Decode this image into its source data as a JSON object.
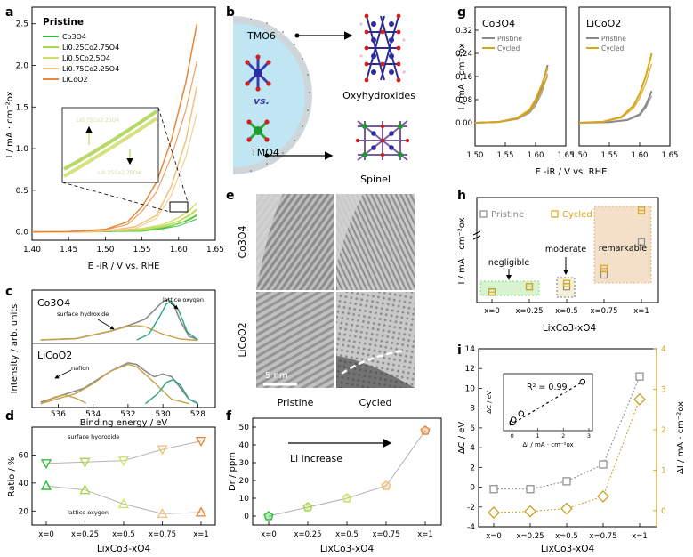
{
  "panel_letters": [
    "a",
    "b",
    "c",
    "d",
    "e",
    "f",
    "g",
    "h",
    "i"
  ],
  "colors": {
    "co3o4": "#2ec03a",
    "li025": "#a9d74a",
    "li05": "#cfe06b",
    "li075": "#f1c27a",
    "licoo2": "#e8873a",
    "pristine": "#8a8a8a",
    "cycled": "#d8a418",
    "teal": "#2aa58a",
    "gold": "#c8a24a",
    "dc_gray": "#8a8a8a",
    "dl_gold": "#c8a020"
  },
  "panel_a": {
    "legend_title": "Pristine",
    "legend": [
      "Co3O4",
      "Li0.25Co2.75O4",
      "Li0.5Co2.5O4",
      "Li0.75Co2.25O4",
      "LiCoO2"
    ],
    "inset_labels": [
      "Li0.75Co2.25O4",
      "Li0.25Co2.75O4"
    ],
    "ylabel": "I / mA · cm⁻²ox",
    "xlabel": "E -iR / V vs. RHE"
  },
  "panel_b": {
    "tmo6": "TMO6",
    "vs": "vs.",
    "tmo4": "TMO4",
    "oxy": "Oxyhydroxides",
    "spinel": "Spinel"
  },
  "panel_c": {
    "label1": "Co3O4",
    "label2": "LiCoO2",
    "surface_hydroxide": "surface hydroxide",
    "lattice_oxygen": "lattice oxygen",
    "nafion": "nafion",
    "ylabel": "Intensity / arb. units",
    "xlabel": "Binding energy / eV",
    "xticks": [
      "536",
      "534",
      "532",
      "530",
      "528"
    ]
  },
  "panel_e": {
    "row1": "Co3O4",
    "row2": "LiCoO2",
    "scale": "5 nm",
    "col1": "Pristine",
    "col2": "Cycled"
  },
  "panel_g": {
    "title1": "Co3O4",
    "title2": "LiCoO2",
    "legend": [
      "Pristine",
      "Cycled"
    ],
    "ylabel": "I / mA · cm⁻²ox",
    "xlabel": "E -iR / V vs. RHE"
  },
  "panel_h": {
    "legend": [
      "Pristine",
      "Cycled"
    ],
    "negligible": "negligible",
    "moderate": "moderate",
    "remarkable": "remarkable",
    "ylabel": "I / mA · cm⁻²ox",
    "xlabel": "LixCo3-xO4"
  },
  "panel_i": {
    "inset_r2": "R² = 0.99",
    "inset_ylabel": "ΔC / eV",
    "inset_xlabel": "ΔI / mA · cm⁻²ox",
    "ylabel_left": "ΔC / eV",
    "ylabel_right": "ΔI / mA · cm⁻²ox",
    "xlabel": "LixCo3-xO4"
  },
  "chart_data": [
    {
      "id": "a",
      "type": "line",
      "xlim": [
        1.4,
        1.65
      ],
      "ylim": [
        -0.1,
        2.7
      ],
      "xticks": [
        1.4,
        1.45,
        1.5,
        1.55,
        1.6,
        1.65
      ],
      "yticks": [
        0.0,
        0.5,
        1.0,
        1.5,
        2.0,
        2.5
      ],
      "series": [
        {
          "name": "Co3O4",
          "x": [
            1.4,
            1.45,
            1.5,
            1.55,
            1.58,
            1.6,
            1.615,
            1.625
          ],
          "y": [
            0,
            0,
            0.005,
            0.02,
            0.05,
            0.1,
            0.15,
            0.2
          ]
        },
        {
          "name": "Li0.25Co2.75O4",
          "x": [
            1.4,
            1.45,
            1.5,
            1.55,
            1.58,
            1.6,
            1.615,
            1.625
          ],
          "y": [
            0,
            0,
            0.01,
            0.03,
            0.07,
            0.13,
            0.2,
            0.27
          ]
        },
        {
          "name": "Li0.5Co2.5O4",
          "x": [
            1.4,
            1.45,
            1.5,
            1.55,
            1.58,
            1.6,
            1.615,
            1.625
          ],
          "y": [
            0,
            0,
            0.01,
            0.04,
            0.09,
            0.17,
            0.26,
            0.35
          ]
        },
        {
          "name": "Li0.75Co2.25O4",
          "x": [
            1.4,
            1.45,
            1.5,
            1.54,
            1.57,
            1.59,
            1.61,
            1.625
          ],
          "y": [
            0,
            0,
            0.01,
            0.06,
            0.2,
            0.55,
            1.1,
            1.75
          ]
        },
        {
          "name": "LiCoO2",
          "x": [
            1.4,
            1.45,
            1.5,
            1.53,
            1.55,
            1.57,
            1.59,
            1.61,
            1.625
          ],
          "y": [
            0,
            0.005,
            0.03,
            0.12,
            0.3,
            0.6,
            1.1,
            1.8,
            2.5
          ]
        }
      ]
    },
    {
      "id": "c",
      "type": "line",
      "xlim": [
        537.5,
        527
      ],
      "subplots": [
        {
          "name": "Co3O4",
          "series": [
            {
              "name": "envelope",
              "x": [
                537,
                535,
                533,
                532,
                531.5,
                531,
                530.5,
                530,
                529.7,
                529.4,
                529,
                528.5,
                528
              ],
              "y": [
                0.02,
                0.05,
                0.22,
                0.35,
                0.42,
                0.5,
                0.7,
                0.9,
                0.95,
                0.85,
                0.45,
                0.1,
                0.03
              ]
            },
            {
              "name": "surface hydroxide",
              "x": [
                537,
                535,
                533,
                532,
                531.5,
                531,
                530,
                529,
                528
              ],
              "y": [
                0.02,
                0.05,
                0.22,
                0.33,
                0.35,
                0.32,
                0.15,
                0.04,
                0.01
              ]
            },
            {
              "name": "lattice oxygen",
              "x": [
                531.5,
                530.8,
                530.2,
                529.8,
                529.5,
                529.1,
                528.6,
                528
              ],
              "y": [
                0.02,
                0.15,
                0.55,
                0.85,
                0.9,
                0.7,
                0.2,
                0.02
              ]
            }
          ]
        },
        {
          "name": "LiCoO2",
          "series": [
            {
              "name": "envelope",
              "x": [
                537,
                536,
                535.5,
                534.5,
                533,
                532,
                531.5,
                531,
                530.5,
                530,
                529.5,
                529,
                528.5,
                528
              ],
              "y": [
                0.05,
                0.15,
                0.2,
                0.3,
                0.6,
                0.75,
                0.72,
                0.6,
                0.5,
                0.55,
                0.5,
                0.3,
                0.1,
                0.03
              ]
            },
            {
              "name": "surface hydroxide",
              "x": [
                537,
                535,
                534,
                533,
                532,
                531.5,
                530.5,
                529.5,
                528.5
              ],
              "y": [
                0.02,
                0.2,
                0.38,
                0.6,
                0.72,
                0.68,
                0.4,
                0.1,
                0.02
              ]
            },
            {
              "name": "lattice oxygen",
              "x": [
                531,
                530.3,
                529.8,
                529.4,
                529,
                528.5,
                528
              ],
              "y": [
                0.02,
                0.2,
                0.4,
                0.45,
                0.35,
                0.1,
                0.02
              ]
            },
            {
              "name": "nafion",
              "x": [
                537,
                536.2,
                535.6,
                535,
                534.4
              ],
              "y": [
                0.02,
                0.14,
                0.18,
                0.12,
                0.03
              ]
            }
          ]
        }
      ]
    },
    {
      "id": "d",
      "type": "line",
      "categories": [
        "x=0",
        "x=0.25",
        "x=0.5",
        "x=0.75",
        "x=1"
      ],
      "ylim": [
        10,
        80
      ],
      "yticks": [
        20,
        40,
        60
      ],
      "ylabel": "Ratio / %",
      "xlabel": "LixCo3-xO4",
      "series": [
        {
          "name": "surface hydroxide",
          "values": [
            54,
            55,
            56,
            64,
            70
          ]
        },
        {
          "name": "lattice oxygen",
          "values": [
            38,
            35,
            25,
            18,
            19
          ]
        }
      ]
    },
    {
      "id": "f",
      "type": "line",
      "categories": [
        "x=0",
        "x=0.25",
        "x=0.5",
        "x=0.75",
        "x=1"
      ],
      "ylim": [
        -5,
        55
      ],
      "yticks": [
        0,
        10,
        20,
        30,
        40,
        50
      ],
      "ylabel": "Dr / ppm",
      "xlabel": "LixCo3-xO4",
      "annotation": "Li increase",
      "values": [
        0,
        5,
        10,
        17,
        48
      ]
    },
    {
      "id": "g",
      "type": "line",
      "xlim": [
        1.5,
        1.65
      ],
      "ylim": [
        -0.08,
        0.4
      ],
      "xticks": [
        1.5,
        1.55,
        1.6,
        1.65
      ],
      "yticks": [
        0.0,
        0.08,
        0.16,
        0.24,
        0.32
      ],
      "subplots": [
        {
          "name": "Co3O4",
          "series": [
            {
              "name": "Pristine",
              "x": [
                1.5,
                1.54,
                1.57,
                1.59,
                1.6,
                1.61,
                1.62
              ],
              "y": [
                0,
                0.003,
                0.015,
                0.04,
                0.07,
                0.12,
                0.2
              ]
            },
            {
              "name": "Cycled",
              "x": [
                1.5,
                1.54,
                1.57,
                1.59,
                1.6,
                1.61,
                1.62
              ],
              "y": [
                0,
                0.003,
                0.017,
                0.045,
                0.08,
                0.13,
                0.19
              ]
            }
          ]
        },
        {
          "name": "LiCoO2",
          "series": [
            {
              "name": "Pristine",
              "x": [
                1.5,
                1.55,
                1.58,
                1.6,
                1.61,
                1.62
              ],
              "y": [
                0,
                0.002,
                0.01,
                0.03,
                0.06,
                0.11
              ]
            },
            {
              "name": "Cycled",
              "x": [
                1.5,
                1.54,
                1.57,
                1.59,
                1.6,
                1.61,
                1.62
              ],
              "y": [
                0,
                0.004,
                0.02,
                0.06,
                0.1,
                0.16,
                0.24
              ]
            }
          ]
        }
      ]
    },
    {
      "id": "h",
      "type": "scatter",
      "categories": [
        "x=0",
        "x=0.25",
        "x=0.5",
        "x=0.75",
        "x=1"
      ],
      "ylabel": "I / mA · cm⁻²ox",
      "xlabel": "LixCo3-xO4",
      "series": [
        {
          "name": "Pristine",
          "values": [
            0.2,
            0.45,
            0.45,
            1.0,
            2.35
          ]
        },
        {
          "name": "Cycled",
          "values": [
            0.2,
            0.45,
            0.6,
            1.3,
            5.3
          ]
        }
      ]
    },
    {
      "id": "i",
      "type": "line",
      "categories": [
        "x=0",
        "x=0.25",
        "x=0.5",
        "x=0.75",
        "x=1"
      ],
      "ylim_left": [
        -4,
        14
      ],
      "yticks_left": [
        -4,
        -2,
        0,
        2,
        4,
        6,
        8,
        10,
        12,
        14
      ],
      "ylim_right": [
        -0.4,
        4.0
      ],
      "yticks_right": [
        0,
        1,
        2,
        3,
        4
      ],
      "series": [
        {
          "name": "ΔC",
          "axis": "left",
          "values": [
            -0.2,
            -0.2,
            0.6,
            2.3,
            11.2
          ]
        },
        {
          "name": "ΔI",
          "axis": "right",
          "values": [
            -0.05,
            -0.02,
            0.05,
            0.35,
            2.75
          ]
        }
      ],
      "inset": {
        "x": [
          0.0,
          0.02,
          0.05,
          0.35,
          2.75
        ],
        "y": [
          -0.2,
          -0.2,
          0.6,
          2.3,
          11.2
        ],
        "xticks": [
          0,
          1,
          2,
          3
        ]
      }
    }
  ]
}
